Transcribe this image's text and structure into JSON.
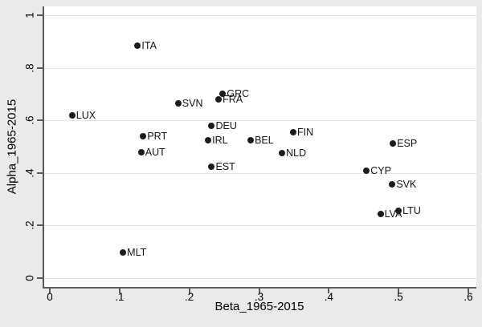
{
  "chart_data": {
    "type": "scatter",
    "title": "",
    "xlabel": "Beta_1965-2015",
    "ylabel": "Alpha_1965-2015",
    "xlim": [
      0,
      0.6
    ],
    "ylim": [
      0,
      1
    ],
    "grid": "horizontal-only",
    "legend": "none",
    "xticks": {
      "values": [
        0,
        0.1,
        0.2,
        0.3,
        0.4,
        0.5,
        0.6
      ],
      "labels": [
        "0",
        ".1",
        ".2",
        ".3",
        ".4",
        ".5",
        ".6"
      ]
    },
    "yticks": {
      "values": [
        0,
        0.2,
        0.4,
        0.6,
        0.8,
        1
      ],
      "labels": [
        "0",
        ".2",
        ".4",
        ".6",
        ".8",
        "1"
      ]
    },
    "points": [
      {
        "label": "LUX",
        "x": 0.032,
        "y": 0.619
      },
      {
        "label": "ITA",
        "x": 0.126,
        "y": 0.884
      },
      {
        "label": "MLT",
        "x": 0.105,
        "y": 0.098
      },
      {
        "label": "PRT",
        "x": 0.134,
        "y": 0.54
      },
      {
        "label": "AUT",
        "x": 0.131,
        "y": 0.479
      },
      {
        "label": "SVN",
        "x": 0.184,
        "y": 0.665
      },
      {
        "label": "IRL",
        "x": 0.227,
        "y": 0.523
      },
      {
        "label": "DEU",
        "x": 0.232,
        "y": 0.579
      },
      {
        "label": "EST",
        "x": 0.232,
        "y": 0.424
      },
      {
        "label": "FRA",
        "x": 0.242,
        "y": 0.68
      },
      {
        "label": "GRC",
        "x": 0.248,
        "y": 0.701
      },
      {
        "label": "BEL",
        "x": 0.288,
        "y": 0.524
      },
      {
        "label": "NLD",
        "x": 0.333,
        "y": 0.476
      },
      {
        "label": "FIN",
        "x": 0.349,
        "y": 0.555
      },
      {
        "label": "CYP",
        "x": 0.454,
        "y": 0.408
      },
      {
        "label": "LVA",
        "x": 0.474,
        "y": 0.244
      },
      {
        "label": "SVK",
        "x": 0.491,
        "y": 0.357
      },
      {
        "label": "ESP",
        "x": 0.492,
        "y": 0.512
      },
      {
        "label": "LTU",
        "x": 0.5,
        "y": 0.256
      }
    ],
    "colors": {
      "background": "#eaeaea",
      "plot_background": "#ffffff",
      "gridline": "#e4e4e4",
      "axis": "#5a5a5a",
      "marker": "#1c1c1c",
      "text": "#000000"
    }
  }
}
